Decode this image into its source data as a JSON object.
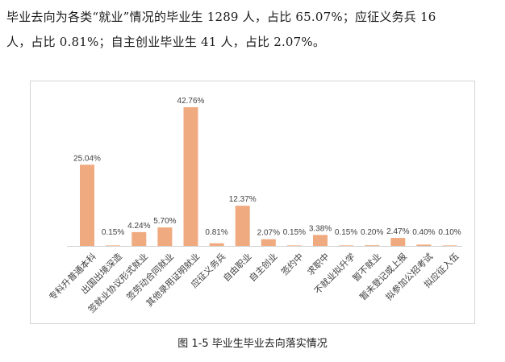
{
  "document": {
    "paragraph_line1": "毕业去向为各类“就业”情况的毕业生 1289 人，占比 65.07%；应征义务兵 16",
    "paragraph_line2": "人，占比 0.81%；自主创业毕业生 41 人，占比 2.07%。",
    "caption": "图 1-5  毕业生毕业去向落实情况"
  },
  "chart_data": {
    "type": "bar",
    "title": "",
    "xlabel": "",
    "ylabel": "",
    "categories": [
      "专科升普通本科",
      "出国出境深造",
      "签就业协议形式就业",
      "签劳动合同就业",
      "其他录用证明就业",
      "应征义务兵",
      "自由职业",
      "自主创业",
      "签约中",
      "求职中",
      "不就业拟升学",
      "暂不就业",
      "暂未登记或上报",
      "拟参加公招考试",
      "拟应征入伍"
    ],
    "values": [
      25.04,
      0.15,
      4.24,
      5.7,
      42.76,
      0.81,
      12.37,
      2.07,
      0.15,
      3.38,
      0.15,
      0.2,
      2.47,
      0.4,
      0.1
    ],
    "labels": [
      "25.04%",
      "0.15%",
      "4.24%",
      "5.70%",
      "42.76%",
      "0.81%",
      "12.37%",
      "2.07%",
      "0.15%",
      "3.38%",
      "0.15%",
      "0.20%",
      "2.47%",
      "0.40%",
      "0.10%"
    ],
    "ylim": [
      0,
      42.76
    ],
    "grid": false,
    "legend": "none",
    "colors": {
      "bar": "#f0aa80",
      "axis": "#d0d0d0",
      "label": "#404040"
    }
  }
}
